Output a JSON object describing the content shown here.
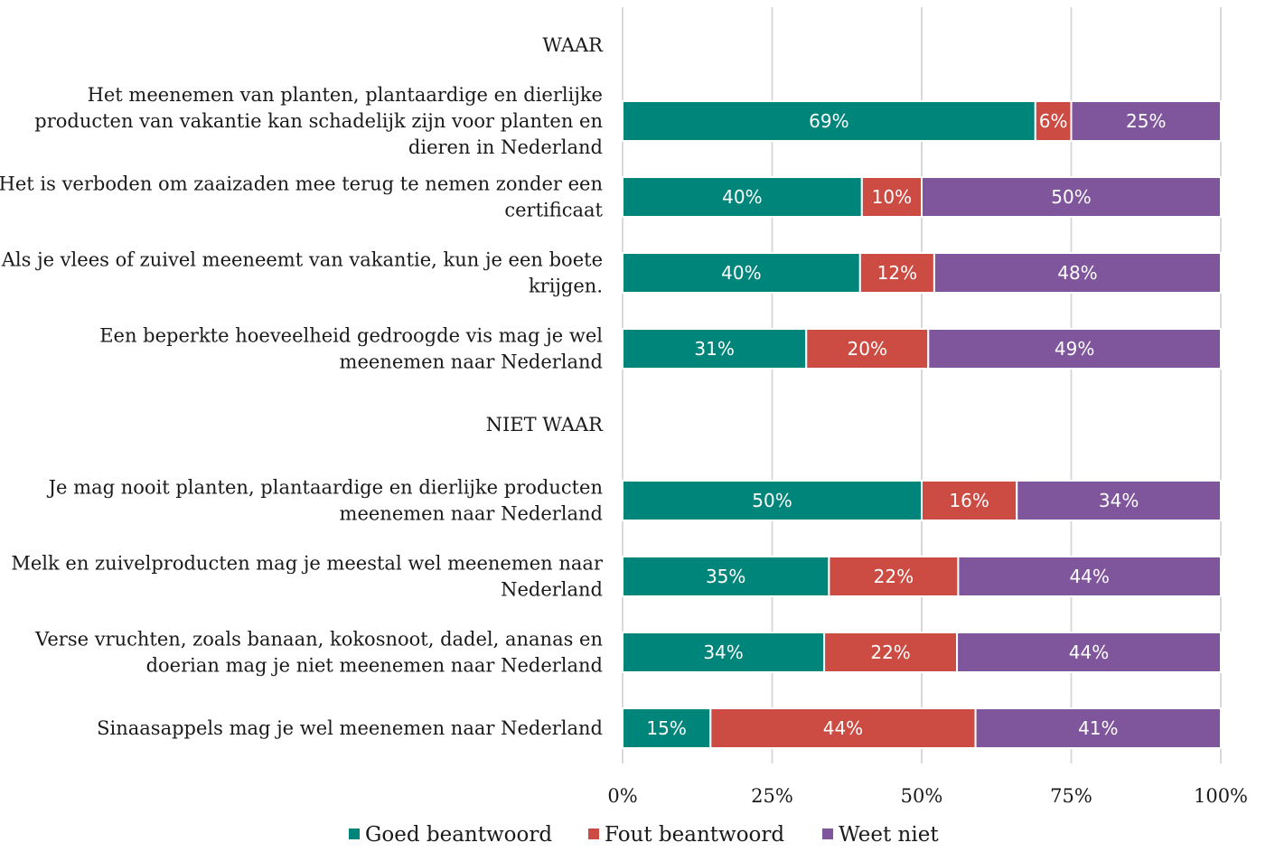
{
  "chart_data": {
    "type": "bar",
    "orientation": "horizontal",
    "stacked": true,
    "percent": true,
    "title": "",
    "xlabel": "",
    "ylabel": "",
    "xlim": [
      0,
      100
    ],
    "x_ticks": [
      "0%",
      "25%",
      "50%",
      "75%",
      "100%"
    ],
    "grid": "vertical",
    "legend_position": "bottom",
    "categories": [
      "WAAR",
      "Het meenemen van planten, plantaardige en dierlijke producten van vakantie kan schadelijk zijn voor planten en dieren in Nederland",
      "Het is verboden om zaaizaden mee terug te nemen zonder een certificaat",
      "Als je vlees of zuivel meeneemt van vakantie, kun je een boete krijgen.",
      "Een beperkte hoeveelheid gedroogde vis mag je wel meenemen naar Nederland",
      "NIET WAAR",
      "Je mag nooit planten, plantaardige en dierlijke producten meenemen naar Nederland",
      "Melk en zuivelproducten mag je meestal wel meenemen naar Nederland",
      "Verse vruchten, zoals banaan, kokosnoot, dadel, ananas en doerian mag je niet  meenemen naar Nederland",
      "Sinaasappels mag je wel meenemen naar Nederland"
    ],
    "category_lines": [
      [
        "WAAR"
      ],
      [
        "Het meenemen van planten, plantaardige en dierlijke",
        "producten van vakantie kan schadelijk zijn voor planten en",
        "dieren in Nederland"
      ],
      [
        "Het is verboden om zaaizaden mee terug te nemen zonder een",
        "certificaat"
      ],
      [
        "Als je vlees of zuivel meeneemt van vakantie, kun je een boete",
        "krijgen."
      ],
      [
        "Een beperkte hoeveelheid gedroogde vis mag je wel",
        "meenemen naar Nederland"
      ],
      [
        "NIET WAAR"
      ],
      [
        "Je mag nooit planten, plantaardige en dierlijke producten",
        "meenemen naar Nederland"
      ],
      [
        "Melk en zuivelproducten mag je meestal wel meenemen naar",
        "Nederland"
      ],
      [
        "Verse vruchten, zoals banaan, kokosnoot, dadel, ananas en",
        "doerian mag je niet  meenemen naar Nederland"
      ],
      [
        "Sinaasappels mag je wel meenemen naar Nederland"
      ]
    ],
    "series": [
      {
        "name": "Goed beantwoord",
        "color": "#00857a",
        "values": [
          null,
          69,
          40,
          39.7,
          30.7,
          null,
          50,
          34.5,
          33.7,
          14.7
        ],
        "labels": [
          "",
          "69%",
          "40%",
          "40%",
          "31%",
          "",
          "50%",
          "35%",
          "34%",
          "15%"
        ]
      },
      {
        "name": "Fout beantwoord",
        "color": "#cc4b42",
        "values": [
          null,
          6,
          10,
          12.4,
          20.4,
          null,
          15.9,
          21.6,
          22.2,
          44.3
        ],
        "labels": [
          "",
          "6%",
          "10%",
          "12%",
          "20%",
          "",
          "16%",
          "22%",
          "22%",
          "44%"
        ]
      },
      {
        "name": "Weet niet",
        "color": "#7f559b",
        "values": [
          null,
          25,
          50,
          47.9,
          48.9,
          null,
          34.1,
          43.9,
          44.1,
          41
        ],
        "labels": [
          "",
          "25%",
          "50%",
          "48%",
          "49%",
          "",
          "34%",
          "44%",
          "44%",
          "41%"
        ]
      }
    ]
  }
}
